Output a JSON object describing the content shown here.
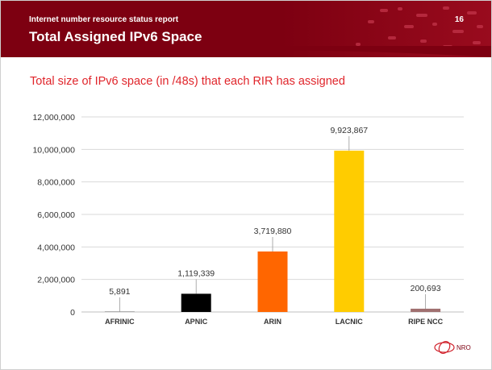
{
  "header": {
    "report_label": "Internet number resource status report",
    "page_number": "16",
    "title": "Total Assigned IPv6 Space",
    "background_color": "#7d0011"
  },
  "subtitle": "Total size of IPv6 space (in /48s) that each RIR has assigned",
  "chart_data": {
    "type": "bar",
    "categories": [
      "AFRINIC",
      "APNIC",
      "ARIN",
      "LACNIC",
      "RIPE NCC"
    ],
    "values": [
      5891,
      1119339,
      3719880,
      9923867,
      200693
    ],
    "value_labels": [
      "5,891",
      "1,119,339",
      "3,719,880",
      "9,923,867",
      "200,693"
    ],
    "colors": [
      "#7f7f7f",
      "#000000",
      "#ff6600",
      "#ffcc00",
      "#a07070"
    ],
    "ylim": [
      0,
      12000000
    ],
    "yticks": [
      0,
      2000000,
      4000000,
      6000000,
      8000000,
      10000000,
      12000000
    ],
    "ytick_labels": [
      "0",
      "2,000,000",
      "4,000,000",
      "6,000,000",
      "8,000,000",
      "10,000,000",
      "12,000,000"
    ],
    "grid": true,
    "title": "",
    "xlabel": "",
    "ylabel": ""
  },
  "footer": {
    "logo_text": "NRO"
  }
}
